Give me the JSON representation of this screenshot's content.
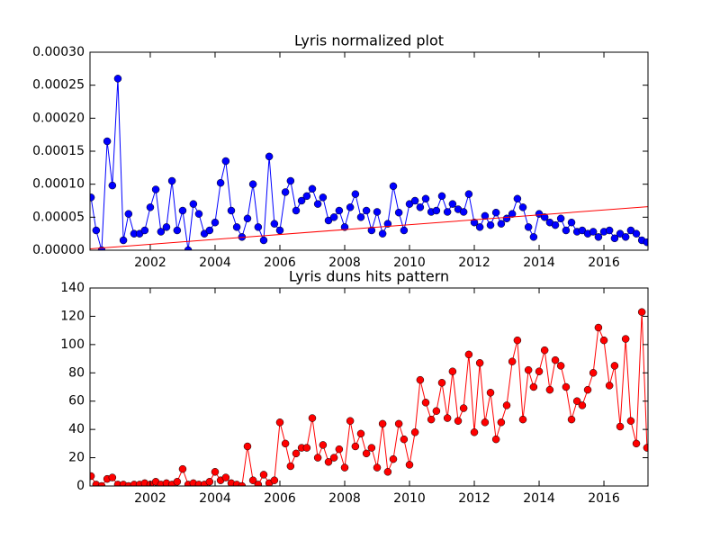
{
  "chart_data": [
    {
      "type": "line",
      "title": "Lyris normalized plot",
      "x": [
        2000.17,
        2000.33,
        2000.5,
        2000.67,
        2000.83,
        2001.0,
        2001.17,
        2001.33,
        2001.5,
        2001.67,
        2001.83,
        2002.0,
        2002.17,
        2002.33,
        2002.5,
        2002.67,
        2002.83,
        2003.0,
        2003.17,
        2003.33,
        2003.5,
        2003.67,
        2003.83,
        2004.0,
        2004.17,
        2004.33,
        2004.5,
        2004.67,
        2004.83,
        2005.0,
        2005.17,
        2005.33,
        2005.5,
        2005.67,
        2005.83,
        2006.0,
        2006.17,
        2006.33,
        2006.5,
        2006.67,
        2006.83,
        2007.0,
        2007.17,
        2007.33,
        2007.5,
        2007.67,
        2007.83,
        2008.0,
        2008.17,
        2008.33,
        2008.5,
        2008.67,
        2008.83,
        2009.0,
        2009.17,
        2009.33,
        2009.5,
        2009.67,
        2009.83,
        2010.0,
        2010.17,
        2010.33,
        2010.5,
        2010.67,
        2010.83,
        2011.0,
        2011.17,
        2011.33,
        2011.5,
        2011.67,
        2011.83,
        2012.0,
        2012.17,
        2012.33,
        2012.5,
        2012.67,
        2012.83,
        2013.0,
        2013.17,
        2013.33,
        2013.5,
        2013.67,
        2013.83,
        2014.0,
        2014.17,
        2014.33,
        2014.5,
        2014.67,
        2014.83,
        2015.0,
        2015.17,
        2015.33,
        2015.5,
        2015.67,
        2015.83,
        2016.0,
        2016.17,
        2016.33,
        2016.5,
        2016.67,
        2016.83,
        2017.0,
        2017.17,
        2017.33
      ],
      "series": [
        {
          "color": "#0000ff",
          "values": [
            8e-05,
            3e-05,
            0,
            0.000165,
            9.8e-05,
            0.00026,
            1.5e-05,
            5.5e-05,
            2.5e-05,
            2.5e-05,
            3e-05,
            6.5e-05,
            9.2e-05,
            2.8e-05,
            3.5e-05,
            0.000105,
            3e-05,
            6e-05,
            0,
            7e-05,
            5.5e-05,
            2.5e-05,
            3e-05,
            4.2e-05,
            0.000102,
            0.000135,
            6e-05,
            3.5e-05,
            2e-05,
            4.8e-05,
            0.0001,
            3.5e-05,
            1.5e-05,
            0.000142,
            4e-05,
            3e-05,
            8.8e-05,
            0.000105,
            6e-05,
            7.5e-05,
            8.2e-05,
            9.3e-05,
            7e-05,
            8e-05,
            4.5e-05,
            5e-05,
            6e-05,
            3.5e-05,
            6.5e-05,
            8.5e-05,
            5e-05,
            6e-05,
            3e-05,
            5.8e-05,
            2.5e-05,
            4e-05,
            9.7e-05,
            5.7e-05,
            3e-05,
            7e-05,
            7.5e-05,
            6.5e-05,
            7.8e-05,
            5.8e-05,
            6e-05,
            8.2e-05,
            5.8e-05,
            7e-05,
            6.2e-05,
            5.8e-05,
            8.5e-05,
            4.2e-05,
            3.5e-05,
            5.2e-05,
            3.8e-05,
            5.7e-05,
            4e-05,
            4.8e-05,
            5.5e-05,
            7.8e-05,
            6.5e-05,
            3.5e-05,
            2e-05,
            5.5e-05,
            5e-05,
            4.2e-05,
            3.8e-05,
            4.8e-05,
            3e-05,
            4.2e-05,
            2.8e-05,
            3e-05,
            2.5e-05,
            2.8e-05,
            2e-05,
            2.8e-05,
            3e-05,
            1.8e-05,
            2.5e-05,
            2e-05,
            3e-05,
            2.5e-05,
            1.5e-05,
            1.2e-05
          ]
        }
      ],
      "trend_line": {
        "color": "#ff0000",
        "x": [
          2000.14,
          2017.36
        ],
        "values": [
          2e-06,
          6.6e-05
        ]
      },
      "xlim": [
        2000.14,
        2017.36
      ],
      "xticks": [
        2002,
        2004,
        2006,
        2008,
        2010,
        2012,
        2014,
        2016
      ],
      "ylim": [
        0,
        0.0003
      ],
      "yticks": [
        {
          "value": 0,
          "label": "0.00000"
        },
        {
          "value": 5e-05,
          "label": "0.00005"
        },
        {
          "value": 0.0001,
          "label": "0.00010"
        },
        {
          "value": 0.00015,
          "label": "0.00015"
        },
        {
          "value": 0.0002,
          "label": "0.00020"
        },
        {
          "value": 0.00025,
          "label": "0.00025"
        },
        {
          "value": 0.0003,
          "label": "0.00030"
        }
      ]
    },
    {
      "type": "line",
      "title": "Lyris duns hits pattern",
      "x": [
        2000.17,
        2000.33,
        2000.5,
        2000.67,
        2000.83,
        2001.0,
        2001.17,
        2001.33,
        2001.5,
        2001.67,
        2001.83,
        2002.0,
        2002.17,
        2002.33,
        2002.5,
        2002.67,
        2002.83,
        2003.0,
        2003.17,
        2003.33,
        2003.5,
        2003.67,
        2003.83,
        2004.0,
        2004.17,
        2004.33,
        2004.5,
        2004.67,
        2004.83,
        2005.0,
        2005.17,
        2005.33,
        2005.5,
        2005.67,
        2005.83,
        2006.0,
        2006.17,
        2006.33,
        2006.5,
        2006.67,
        2006.83,
        2007.0,
        2007.17,
        2007.33,
        2007.5,
        2007.67,
        2007.83,
        2008.0,
        2008.17,
        2008.33,
        2008.5,
        2008.67,
        2008.83,
        2009.0,
        2009.17,
        2009.33,
        2009.5,
        2009.67,
        2009.83,
        2010.0,
        2010.17,
        2010.33,
        2010.5,
        2010.67,
        2010.83,
        2011.0,
        2011.17,
        2011.33,
        2011.5,
        2011.67,
        2011.83,
        2012.0,
        2012.17,
        2012.33,
        2012.5,
        2012.67,
        2012.83,
        2013.0,
        2013.17,
        2013.33,
        2013.5,
        2013.67,
        2013.83,
        2014.0,
        2014.17,
        2014.33,
        2014.5,
        2014.67,
        2014.83,
        2015.0,
        2015.17,
        2015.33,
        2015.5,
        2015.67,
        2015.83,
        2016.0,
        2016.17,
        2016.33,
        2016.5,
        2016.67,
        2016.83,
        2017.0,
        2017.17,
        2017.33
      ],
      "series": [
        {
          "color": "#ff0000",
          "values": [
            7,
            1,
            0,
            5,
            6,
            1,
            1,
            0,
            1,
            1,
            2,
            1,
            3,
            1,
            2,
            1,
            3,
            12,
            1,
            2,
            1,
            1,
            3,
            10,
            4,
            6,
            2,
            1,
            0,
            28,
            4,
            1,
            8,
            2,
            4,
            45,
            30,
            14,
            23,
            27,
            27,
            48,
            20,
            29,
            17,
            20,
            26,
            13,
            46,
            28,
            37,
            23,
            27,
            13,
            44,
            10,
            19,
            44,
            33,
            15,
            38,
            75,
            59,
            47,
            53,
            73,
            48,
            81,
            46,
            55,
            93,
            38,
            87,
            45,
            66,
            33,
            45,
            57,
            88,
            103,
            47,
            82,
            70,
            81,
            96,
            68,
            89,
            85,
            70,
            47,
            60,
            57,
            68,
            80,
            112,
            103,
            71,
            85,
            42,
            104,
            46,
            30,
            123,
            27
          ]
        }
      ],
      "xlim": [
        2000.14,
        2017.36
      ],
      "xticks": [
        2002,
        2004,
        2006,
        2008,
        2010,
        2012,
        2014,
        2016
      ],
      "ylim": [
        0,
        140
      ],
      "yticks": [
        0,
        20,
        40,
        60,
        80,
        100,
        120,
        140
      ]
    }
  ]
}
